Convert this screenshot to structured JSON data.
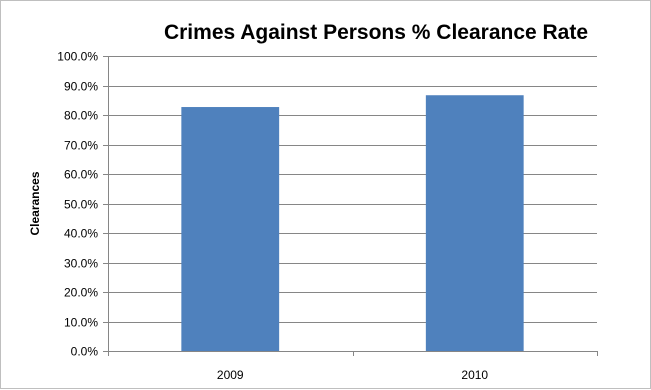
{
  "chart_data": {
    "type": "bar",
    "title": "Crimes Against Persons % Clearance Rate",
    "xlabel": "",
    "ylabel": "Clearances",
    "categories": [
      "2009",
      "2010"
    ],
    "values": [
      82.7,
      86.7
    ],
    "ylim": [
      0,
      100
    ],
    "y_ticks": [
      "0.0%",
      "10.0%",
      "20.0%",
      "30.0%",
      "40.0%",
      "50.0%",
      "60.0%",
      "70.0%",
      "80.0%",
      "90.0%",
      "100.0%"
    ],
    "grid": true,
    "legend": "none",
    "bar_color": "#4f81bd",
    "grid_color": "#868686"
  }
}
